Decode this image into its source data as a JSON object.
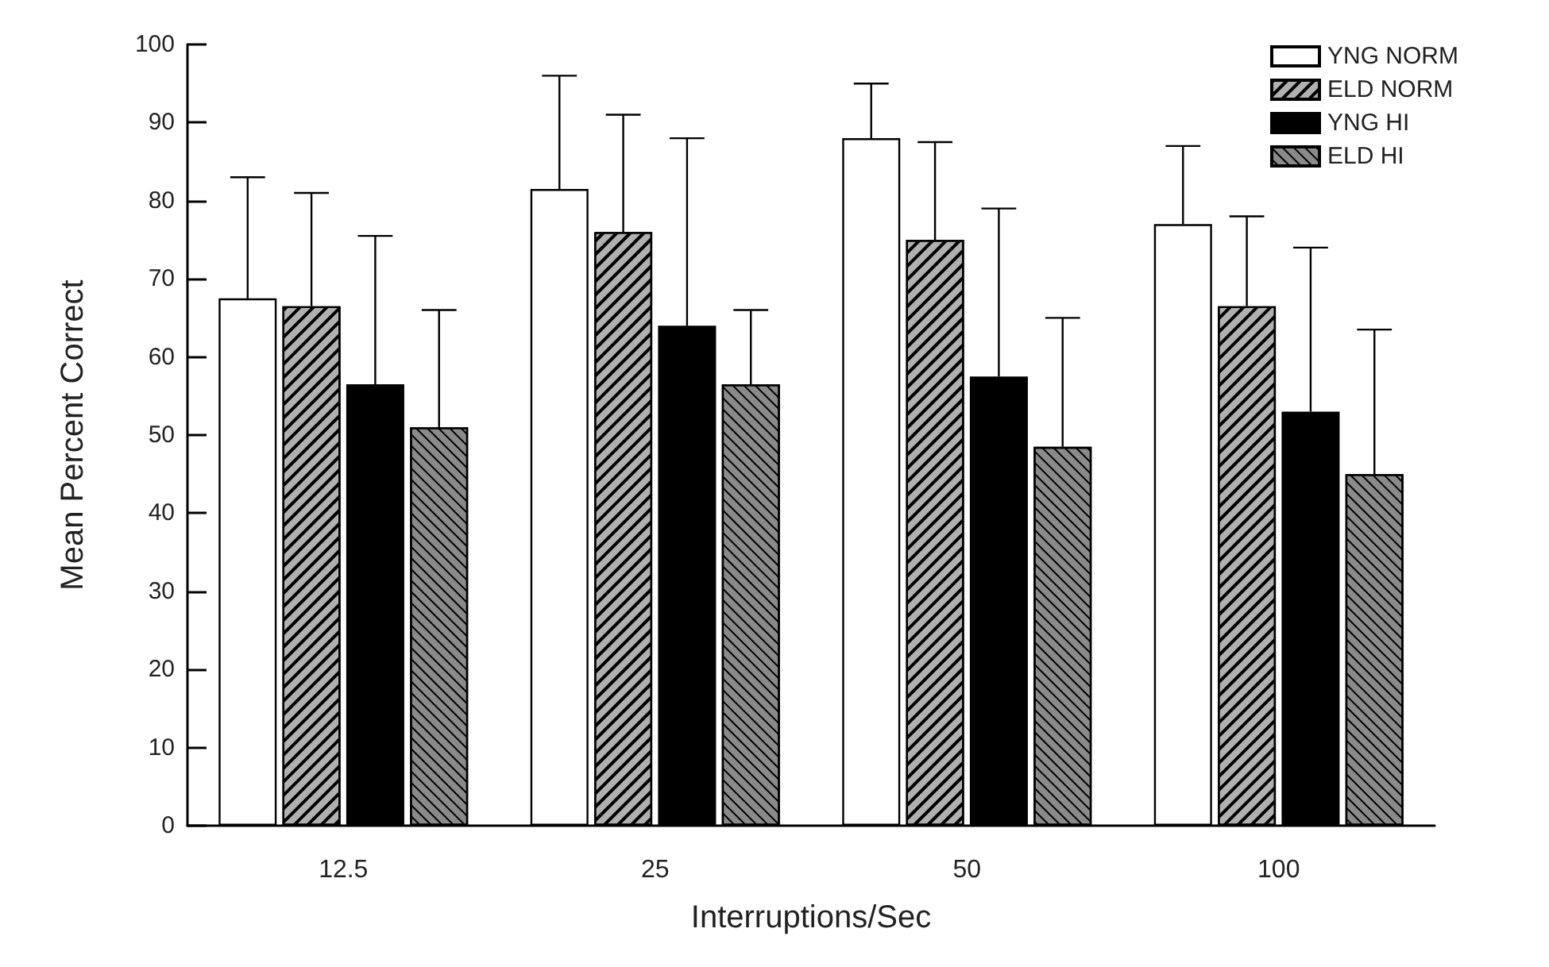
{
  "chart_data": {
    "type": "bar",
    "xlabel": "Interruptions/Sec",
    "ylabel": "Mean Percent Correct",
    "categories": [
      "12.5",
      "25",
      "50",
      "100"
    ],
    "ylim": [
      0,
      100
    ],
    "yticks": [
      0,
      10,
      20,
      30,
      40,
      50,
      60,
      70,
      80,
      90,
      100
    ],
    "grid": false,
    "legend": "top right",
    "series": [
      {
        "name": "YNG NORM",
        "color": "#ffffff",
        "values": [
          67.5,
          81.5,
          88,
          77
        ],
        "errors": [
          [
            67.5,
            83
          ],
          [
            81.5,
            96
          ],
          [
            88,
            95
          ],
          [
            77,
            87
          ]
        ]
      },
      {
        "name": "ELD NORM",
        "color": "#b0b0b0",
        "values": [
          66.5,
          76,
          75,
          66.5
        ],
        "errors": [
          [
            66.5,
            81
          ],
          [
            76,
            91
          ],
          [
            75,
            87.5
          ],
          [
            66.5,
            78
          ]
        ]
      },
      {
        "name": "YNG HI",
        "color": "#000000",
        "values": [
          56.5,
          64,
          57.5,
          53
        ],
        "errors": [
          [
            56.5,
            75.5
          ],
          [
            64,
            88
          ],
          [
            57.5,
            79
          ],
          [
            53,
            74
          ]
        ]
      },
      {
        "name": "ELD HI",
        "color": "#8a8a8a",
        "values": [
          51,
          56.5,
          48.5,
          45
        ],
        "errors": [
          [
            51,
            66
          ],
          [
            56.5,
            66
          ],
          [
            48.5,
            65
          ],
          [
            45,
            63.5
          ]
        ]
      }
    ]
  }
}
